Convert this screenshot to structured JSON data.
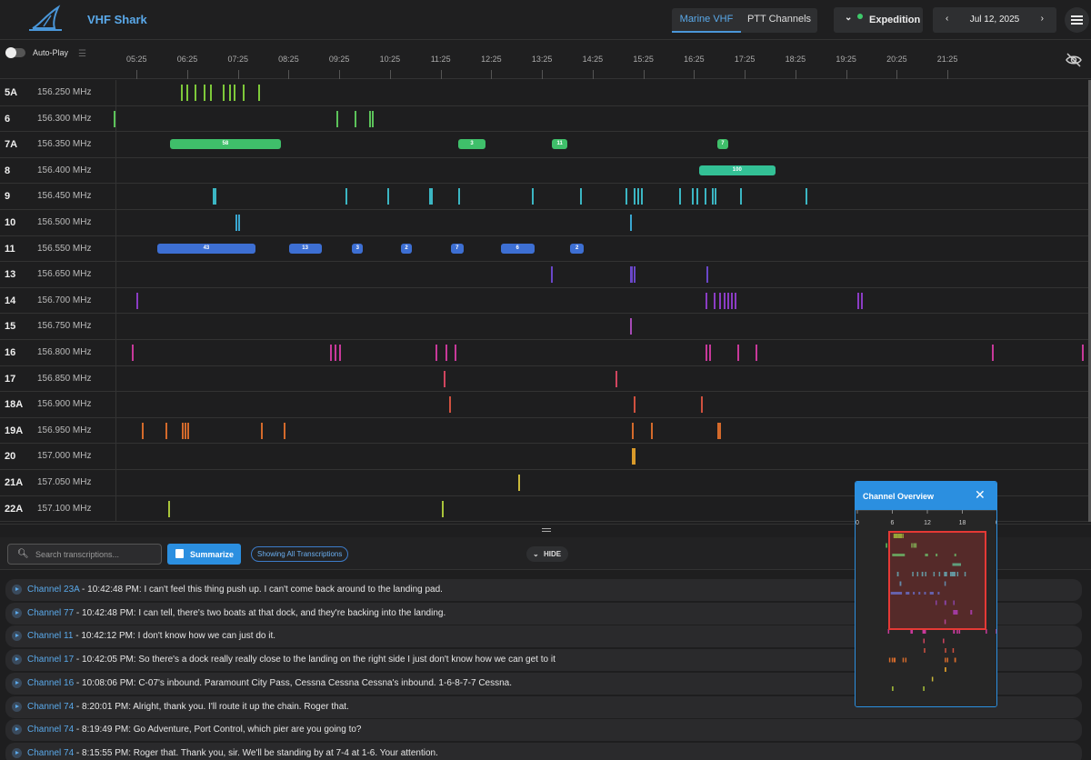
{
  "app": {
    "title": "VHF Shark"
  },
  "header": {
    "tabs": [
      {
        "label": "Marine VHF",
        "active": true
      },
      {
        "label": "PTT Channels",
        "active": false
      }
    ],
    "expedition_label": "Expedition",
    "date": "Jul 12, 2025",
    "prev_glyph": "‹",
    "next_glyph": "›",
    "status_color": "#3ec96a"
  },
  "timeline": {
    "autoplay_label": "Auto-Play",
    "ticks": [
      "05:25",
      "06:25",
      "07:25",
      "08:25",
      "09:25",
      "10:25",
      "11:25",
      "12:25",
      "13:25",
      "14:25",
      "15:25",
      "16:25",
      "17:25",
      "18:25",
      "19:25",
      "20:25",
      "21:25"
    ],
    "channels": [
      {
        "ch": "5A",
        "freq": "156.250 MHz",
        "color": "#7ec93a",
        "marks": [
          6.28,
          6.38,
          6.55,
          6.72,
          6.85,
          7.1,
          7.22,
          7.32,
          7.5,
          7.8
        ],
        "segments": []
      },
      {
        "ch": "6",
        "freq": "156.300 MHz",
        "color": "#5cc35a",
        "marks": [
          4.95,
          9.35,
          9.7,
          9.98,
          10.05
        ],
        "segments": []
      },
      {
        "ch": "7A",
        "freq": "156.350 MHz",
        "color": "#3fbf6a",
        "marks": [],
        "segments": [
          {
            "start": 6.05,
            "end": 8.25,
            "label": "58"
          },
          {
            "start": 11.75,
            "end": 12.28,
            "label": "3"
          },
          {
            "start": 13.6,
            "end": 13.9,
            "label": "11"
          },
          {
            "start": 16.85,
            "end": 17.08,
            "label": "7"
          }
        ]
      },
      {
        "ch": "8",
        "freq": "156.400 MHz",
        "color": "#33c095",
        "marks": [],
        "segments": [
          {
            "start": 16.5,
            "end": 18.0,
            "label": "100"
          }
        ]
      },
      {
        "ch": "9",
        "freq": "156.450 MHz",
        "color": "#3bb6c3",
        "marks": [
          6.9,
          6.93,
          9.52,
          10.35,
          11.17,
          11.2,
          11.75,
          13.2,
          14.15,
          15.05,
          15.2,
          15.28,
          15.35,
          16.1,
          16.35,
          16.45,
          16.6,
          16.75,
          16.8,
          17.3,
          18.6
        ],
        "segments": []
      },
      {
        "ch": "10",
        "freq": "156.500 MHz",
        "color": "#3aa6d0",
        "marks": [
          7.35,
          7.4,
          15.13
        ],
        "segments": []
      },
      {
        "ch": "11",
        "freq": "156.550 MHz",
        "color": "#3d6fd3",
        "marks": [],
        "segments": [
          {
            "start": 5.8,
            "end": 7.75,
            "label": "43"
          },
          {
            "start": 8.4,
            "end": 9.05,
            "label": "13"
          },
          {
            "start": 9.65,
            "end": 9.87,
            "label": "3"
          },
          {
            "start": 10.62,
            "end": 10.83,
            "label": "2"
          },
          {
            "start": 11.6,
            "end": 11.85,
            "label": "7"
          },
          {
            "start": 12.58,
            "end": 13.25,
            "label": "6"
          },
          {
            "start": 13.96,
            "end": 14.22,
            "label": "2"
          }
        ]
      },
      {
        "ch": "13",
        "freq": "156.650 MHz",
        "color": "#6a47c9",
        "marks": [
          13.58,
          15.13,
          15.16,
          15.2,
          16.65
        ],
        "segments": []
      },
      {
        "ch": "14",
        "freq": "156.700 MHz",
        "color": "#8b3cc4",
        "marks": [
          5.4,
          16.63,
          16.78,
          16.9,
          16.98,
          17.05,
          17.12,
          17.2,
          19.62,
          19.7
        ],
        "segments": []
      },
      {
        "ch": "15",
        "freq": "156.750 MHz",
        "color": "#a64ab6",
        "marks": [
          15.13
        ],
        "segments": []
      },
      {
        "ch": "16",
        "freq": "156.800 MHz",
        "color": "#c8399a",
        "marks": [
          5.3,
          9.22,
          9.3,
          9.4,
          11.3,
          11.5,
          11.68,
          16.63,
          16.7,
          17.25,
          17.62,
          22.28,
          24.05
        ],
        "segments": []
      },
      {
        "ch": "17",
        "freq": "156.850 MHz",
        "color": "#d0455f",
        "marks": [
          11.45,
          14.85
        ],
        "segments": []
      },
      {
        "ch": "18A",
        "freq": "156.900 MHz",
        "color": "#d0513f",
        "marks": [
          11.56,
          15.2,
          16.53
        ],
        "segments": []
      },
      {
        "ch": "19A",
        "freq": "156.950 MHz",
        "color": "#d46a2b",
        "marks": [
          5.5,
          5.97,
          6.3,
          6.35,
          6.4,
          7.85,
          8.3,
          15.17,
          15.55,
          16.85,
          16.9
        ],
        "segments": []
      },
      {
        "ch": "20",
        "freq": "157.000 MHz",
        "color": "#d99a2a",
        "marks": [
          15.17,
          15.2
        ],
        "segments": []
      },
      {
        "ch": "21A",
        "freq": "157.050 MHz",
        "color": "#c9b83a",
        "marks": [
          12.93
        ],
        "segments": []
      },
      {
        "ch": "22A",
        "freq": "157.100 MHz",
        "color": "#a9c43a",
        "marks": [
          6.02,
          11.42
        ],
        "segments": []
      }
    ]
  },
  "toolbar": {
    "search_placeholder": "Search transcriptions...",
    "summarize_label": "Summarize",
    "showing_label": "Showing All Transcriptions",
    "hide_label": "HIDE"
  },
  "transcriptions": [
    {
      "channel": "Channel 23A",
      "time": "10:42:48 PM",
      "text": "I can't feel this thing push up. I can't come back around to the landing pad."
    },
    {
      "channel": "Channel 77",
      "time": "10:42:48 PM",
      "text": "I can tell, there's two boats at that dock, and they're backing into the landing."
    },
    {
      "channel": "Channel 11",
      "time": "10:42:12 PM",
      "text": "I don't know how we can just do it."
    },
    {
      "channel": "Channel 17",
      "time": "10:42:05 PM",
      "text": "So there's a dock really really close to the landing on the right side I just don't know how we can get to it"
    },
    {
      "channel": "Channel 16",
      "time": "10:08:06 PM",
      "text": "C-07's inbound. Paramount City Pass, Cessna Cessna Cessna's inbound. 1-6-8-7-7 Cessna."
    },
    {
      "channel": "Channel 74",
      "time": "8:20:01 PM",
      "text": "Alright, thank you. I'll route it up the chain. Roger that."
    },
    {
      "channel": "Channel 74",
      "time": "8:19:49 PM",
      "text": "Go Adventure, Port Control, which pier are you going to?"
    },
    {
      "channel": "Channel 74",
      "time": "8:15:55 PM",
      "text": "Roger that. Thank you, sir. We'll be standing by at 7-4 at 1-6. Your attention."
    }
  ],
  "overview": {
    "title": "Channel Overview",
    "ticks": [
      "0",
      "6",
      "12",
      "18",
      "0"
    ],
    "highlight_color": "#e53935"
  }
}
